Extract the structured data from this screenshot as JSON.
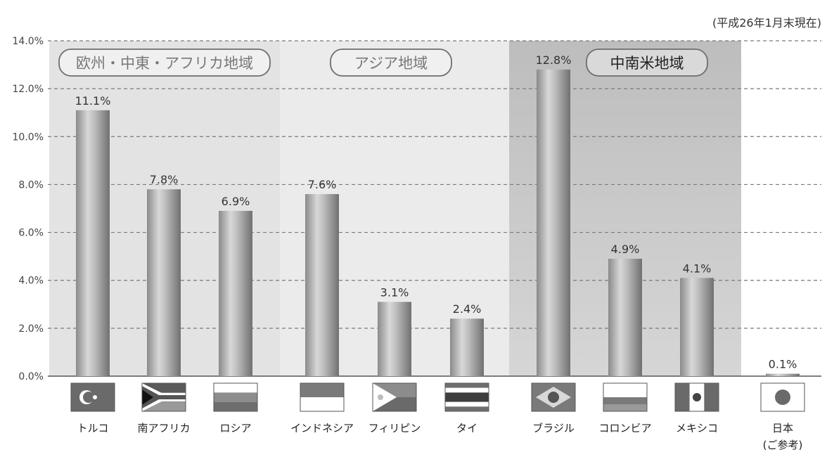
{
  "note": "(平成26年1月末現在)",
  "regions": [
    {
      "label": "欧州・中東・アフリカ地域",
      "shade": "#e3e3e3",
      "highlight": false
    },
    {
      "label": "アジア地域",
      "shade": "#ebebeb",
      "highlight": false
    },
    {
      "label": "中南米地域",
      "shade": "#c8c8c8",
      "highlight": true
    }
  ],
  "chart_data": {
    "type": "bar",
    "title": "",
    "xlabel": "",
    "ylabel": "",
    "ylim": [
      0,
      14
    ],
    "y_ticks": [
      "0.0%",
      "2.0%",
      "4.0%",
      "6.0%",
      "8.0%",
      "10.0%",
      "12.0%",
      "14.0%"
    ],
    "grid": true,
    "categories": [
      {
        "label": [
          "トルコ"
        ],
        "value": 11.1,
        "value_label": "11.1%",
        "region": 0,
        "flag": "turkey-flag"
      },
      {
        "label": [
          "南アフリカ"
        ],
        "value": 7.8,
        "value_label": "7.8%",
        "region": 0,
        "flag": "south-africa-flag"
      },
      {
        "label": [
          "ロシア"
        ],
        "value": 6.9,
        "value_label": "6.9%",
        "region": 0,
        "flag": "russia-flag"
      },
      {
        "label": [
          "インドネシア"
        ],
        "value": 7.6,
        "value_label": "7.6%",
        "region": 1,
        "flag": "indonesia-flag"
      },
      {
        "label": [
          "フィリピン"
        ],
        "value": 3.1,
        "value_label": "3.1%",
        "region": 1,
        "flag": "philippines-flag"
      },
      {
        "label": [
          "タイ"
        ],
        "value": 2.4,
        "value_label": "2.4%",
        "region": 1,
        "flag": "thailand-flag"
      },
      {
        "label": [
          "ブラジル"
        ],
        "value": 12.8,
        "value_label": "12.8%",
        "region": 2,
        "flag": "brazil-flag"
      },
      {
        "label": [
          "コロンビア"
        ],
        "value": 4.9,
        "value_label": "4.9%",
        "region": 2,
        "flag": "colombia-flag"
      },
      {
        "label": [
          "メキシコ"
        ],
        "value": 4.1,
        "value_label": "4.1%",
        "region": 2,
        "flag": "mexico-flag"
      },
      {
        "label": [
          "日本",
          "(ご参考)"
        ],
        "value": 0.1,
        "value_label": "0.1%",
        "region": null,
        "flag": "japan-flag"
      }
    ]
  }
}
